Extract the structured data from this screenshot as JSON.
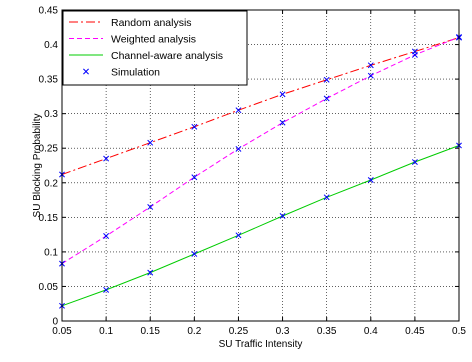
{
  "chart_data": {
    "type": "line",
    "xlabel": "SU Traffic Intensity",
    "ylabel": "SU Blocking Probability",
    "xlim": [
      0.05,
      0.5
    ],
    "ylim": [
      0,
      0.45
    ],
    "xticks": [
      0.05,
      0.1,
      0.15,
      0.2,
      0.25,
      0.3,
      0.35,
      0.4,
      0.45,
      0.5
    ],
    "yticks": [
      0,
      0.05,
      0.1,
      0.15,
      0.2,
      0.25,
      0.3,
      0.35,
      0.4,
      0.45
    ],
    "xtick_labels": [
      "0.05",
      "0.1",
      "0.15",
      "0.2",
      "0.25",
      "0.3",
      "0.35",
      "0.4",
      "0.45",
      "0.5"
    ],
    "ytick_labels": [
      "0",
      "0.05",
      "0.1",
      "0.15",
      "0.2",
      "0.25",
      "0.3",
      "0.35",
      "0.4",
      "0.45"
    ],
    "grid": true,
    "legend_position": "top-left",
    "x": [
      0.05,
      0.1,
      0.15,
      0.2,
      0.25,
      0.3,
      0.35,
      0.4,
      0.45,
      0.5
    ],
    "series": [
      {
        "name": "Random analysis",
        "color": "#ff0000",
        "style": "dashdot",
        "values": [
          0.212,
          0.235,
          0.258,
          0.281,
          0.305,
          0.328,
          0.349,
          0.37,
          0.39,
          0.41
        ]
      },
      {
        "name": "Weighted analysis",
        "color": "#ff00ff",
        "style": "dashed",
        "values": [
          0.083,
          0.123,
          0.165,
          0.208,
          0.249,
          0.287,
          0.322,
          0.355,
          0.385,
          0.411
        ]
      },
      {
        "name": "Channel-aware analysis",
        "color": "#00cc00",
        "style": "solid",
        "values": [
          0.022,
          0.045,
          0.07,
          0.097,
          0.124,
          0.152,
          0.179,
          0.204,
          0.23,
          0.254
        ]
      }
    ],
    "simulation": {
      "name": "Simulation",
      "color": "#0000ff",
      "marker": "x",
      "points": [
        [
          0.05,
          0.212
        ],
        [
          0.1,
          0.235
        ],
        [
          0.15,
          0.258
        ],
        [
          0.2,
          0.281
        ],
        [
          0.25,
          0.305
        ],
        [
          0.3,
          0.328
        ],
        [
          0.35,
          0.349
        ],
        [
          0.4,
          0.37
        ],
        [
          0.45,
          0.39
        ],
        [
          0.5,
          0.41
        ],
        [
          0.05,
          0.083
        ],
        [
          0.1,
          0.123
        ],
        [
          0.15,
          0.165
        ],
        [
          0.2,
          0.208
        ],
        [
          0.25,
          0.249
        ],
        [
          0.3,
          0.287
        ],
        [
          0.35,
          0.322
        ],
        [
          0.4,
          0.355
        ],
        [
          0.45,
          0.385
        ],
        [
          0.5,
          0.411
        ],
        [
          0.05,
          0.022
        ],
        [
          0.1,
          0.045
        ],
        [
          0.15,
          0.07
        ],
        [
          0.2,
          0.097
        ],
        [
          0.25,
          0.124
        ],
        [
          0.3,
          0.152
        ],
        [
          0.35,
          0.179
        ],
        [
          0.4,
          0.204
        ],
        [
          0.45,
          0.23
        ],
        [
          0.5,
          0.254
        ]
      ]
    }
  }
}
